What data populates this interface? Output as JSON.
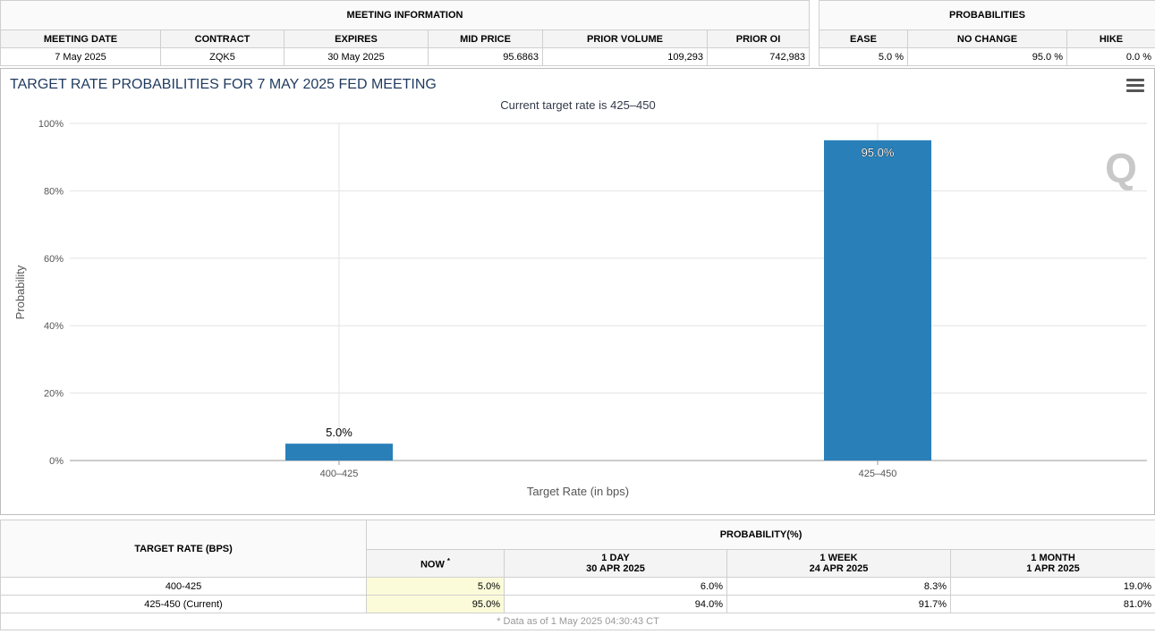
{
  "meeting_info": {
    "title": "MEETING INFORMATION",
    "headers": [
      "MEETING DATE",
      "CONTRACT",
      "EXPIRES",
      "MID PRICE",
      "PRIOR VOLUME",
      "PRIOR OI"
    ],
    "row": [
      "7 May 2025",
      "ZQK5",
      "30 May 2025",
      "95.6863",
      "109,293",
      "742,983"
    ]
  },
  "probabilities": {
    "title": "PROBABILITIES",
    "headers": [
      "EASE",
      "NO CHANGE",
      "HIKE"
    ],
    "row": [
      "5.0 %",
      "95.0 %",
      "0.0 %"
    ]
  },
  "chart": {
    "title": "TARGET RATE PROBABILITIES FOR 7 MAY 2025 FED MEETING",
    "subtitle": "Current target rate is 425–450",
    "watermark": "Q",
    "menu_icon": "hamburger-menu-icon"
  },
  "chart_data": {
    "type": "bar",
    "title": "TARGET RATE PROBABILITIES FOR 7 MAY 2025 FED MEETING",
    "subtitle": "Current target rate is 425–450",
    "categories": [
      "400–425",
      "425–450"
    ],
    "values": [
      5.0,
      95.0
    ],
    "data_labels": [
      "5.0%",
      "95.0%"
    ],
    "xlabel": "Target Rate (in bps)",
    "ylabel": "Probability",
    "ylim": [
      0,
      100
    ],
    "yticks": [
      "0%",
      "20%",
      "40%",
      "60%",
      "80%",
      "100%"
    ],
    "bar_color": "#2980b9",
    "grid": true
  },
  "bottom_table": {
    "target_header": "TARGET RATE (BPS)",
    "prob_header": "PROBABILITY(%)",
    "now_label": "NOW",
    "now_marker": "*",
    "columns": [
      {
        "label": "1 DAY",
        "date": "30 APR 2025"
      },
      {
        "label": "1 WEEK",
        "date": "24 APR 2025"
      },
      {
        "label": "1 MONTH",
        "date": "1 APR 2025"
      }
    ],
    "rows": [
      {
        "rate": "400-425",
        "now": "5.0%",
        "values": [
          "6.0%",
          "8.3%",
          "19.0%"
        ]
      },
      {
        "rate": "425-450 (Current)",
        "now": "95.0%",
        "values": [
          "94.0%",
          "91.7%",
          "81.0%"
        ]
      }
    ],
    "footnote": "* Data as of 1 May 2025 04:30:43 CT"
  }
}
